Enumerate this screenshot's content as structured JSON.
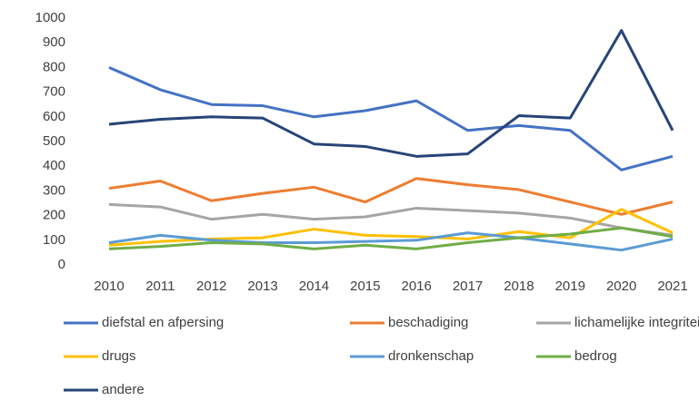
{
  "chart_data": {
    "type": "line",
    "categories": [
      "2010",
      "2011",
      "2012",
      "2013",
      "2014",
      "2015",
      "2016",
      "2017",
      "2018",
      "2019",
      "2020",
      "2021"
    ],
    "ylim": [
      0,
      1000
    ],
    "yticks": [
      0,
      100,
      200,
      300,
      400,
      500,
      600,
      700,
      800,
      900,
      1000
    ],
    "grid": false,
    "legend": "bottom",
    "series": [
      {
        "name": "diefstal en afpersing",
        "color": "#4472c4",
        "values": [
          800,
          710,
          650,
          645,
          600,
          625,
          665,
          545,
          565,
          545,
          385,
          440
        ]
      },
      {
        "name": "beschadiging",
        "color": "#ed7d31",
        "values": [
          310,
          340,
          260,
          290,
          315,
          255,
          350,
          325,
          305,
          255,
          205,
          255
        ]
      },
      {
        "name": "lichamelijke integriteit",
        "color": "#a5a5a5",
        "values": [
          245,
          235,
          185,
          205,
          185,
          195,
          230,
          220,
          210,
          190,
          150,
          120
        ]
      },
      {
        "name": "drugs",
        "color": "#ffc000",
        "values": [
          80,
          95,
          105,
          110,
          145,
          120,
          115,
          105,
          135,
          110,
          225,
          130
        ]
      },
      {
        "name": "dronkenschap",
        "color": "#5b9bd5",
        "values": [
          90,
          120,
          100,
          90,
          90,
          95,
          100,
          130,
          110,
          85,
          60,
          105
        ]
      },
      {
        "name": "bedrog",
        "color": "#70ad47",
        "values": [
          65,
          75,
          90,
          85,
          65,
          80,
          65,
          90,
          110,
          125,
          150,
          115
        ]
      },
      {
        "name": "andere",
        "color": "#264478",
        "values": [
          570,
          590,
          600,
          595,
          490,
          480,
          440,
          450,
          605,
          595,
          950,
          545
        ]
      }
    ]
  }
}
